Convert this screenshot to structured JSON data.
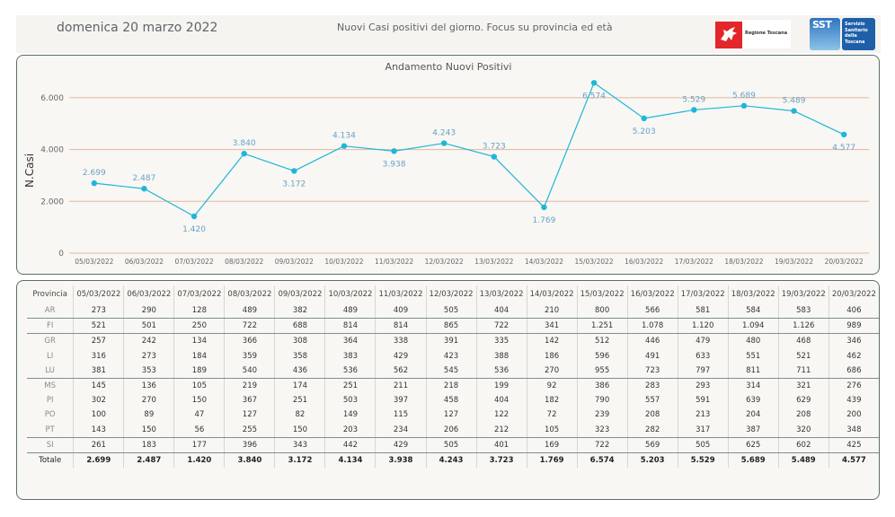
{
  "header": {
    "date": "domenica 20 marzo 2022",
    "title": "Nuovi Casi positivi del giorno. Focus su provincia ed età",
    "logo_regione_label": "Regione Toscana",
    "logo_sst_acronym": "SST",
    "logo_sst_text": [
      "Servizio",
      "Sanitario",
      "della",
      "Toscana"
    ]
  },
  "chart_data": {
    "type": "line",
    "title": "Andamento Nuovi Positivi",
    "xlabel": "",
    "ylabel": "N.Casi",
    "ylim": [
      0,
      7000
    ],
    "yticks": [
      0,
      2000,
      4000,
      6000
    ],
    "ytick_labels": [
      "0",
      "2.000",
      "4.000",
      "6.000"
    ],
    "grid": true,
    "line_color": "#1fb6d8",
    "grid_color": "#e3b7a0",
    "label_color": "#6aa0c8",
    "categories": [
      "05/03/2022",
      "06/03/2022",
      "07/03/2022",
      "08/03/2022",
      "09/03/2022",
      "10/03/2022",
      "11/03/2022",
      "12/03/2022",
      "13/03/2022",
      "14/03/2022",
      "15/03/2022",
      "16/03/2022",
      "17/03/2022",
      "18/03/2022",
      "19/03/2022",
      "20/03/2022"
    ],
    "series": [
      {
        "name": "Nuovi Positivi",
        "values": [
          2699,
          2487,
          1420,
          3840,
          3172,
          4134,
          3938,
          4243,
          3723,
          1769,
          6574,
          5203,
          5529,
          5689,
          5489,
          4577
        ],
        "labels": [
          "2.699",
          "2.487",
          "1.420",
          "3.840",
          "3.172",
          "4.134",
          "3.938",
          "4.243",
          "3.723",
          "1.769",
          "6.574",
          "5.203",
          "5.529",
          "5.689",
          "5.489",
          "4.577"
        ],
        "label_pos": [
          "above",
          "above",
          "below",
          "above",
          "below",
          "above",
          "below",
          "above",
          "above",
          "below",
          "below",
          "below",
          "above",
          "above",
          "above",
          "below"
        ]
      }
    ]
  },
  "table": {
    "header_first": "Provincia",
    "dates": [
      "05/03/2022",
      "06/03/2022",
      "07/03/2022",
      "08/03/2022",
      "09/03/2022",
      "10/03/2022",
      "11/03/2022",
      "12/03/2022",
      "13/03/2022",
      "14/03/2022",
      "15/03/2022",
      "16/03/2022",
      "17/03/2022",
      "18/03/2022",
      "19/03/2022",
      "20/03/2022"
    ],
    "rows": [
      {
        "prov": "AR",
        "values": [
          "273",
          "290",
          "128",
          "489",
          "382",
          "489",
          "409",
          "505",
          "404",
          "210",
          "800",
          "566",
          "581",
          "584",
          "583",
          "406"
        ]
      },
      {
        "prov": "FI",
        "values": [
          "521",
          "501",
          "250",
          "722",
          "688",
          "814",
          "814",
          "865",
          "722",
          "341",
          "1.251",
          "1.078",
          "1.120",
          "1.094",
          "1.126",
          "989"
        ]
      },
      {
        "prov": "GR",
        "values": [
          "257",
          "242",
          "134",
          "366",
          "308",
          "364",
          "338",
          "391",
          "335",
          "142",
          "512",
          "446",
          "479",
          "480",
          "468",
          "346"
        ]
      },
      {
        "prov": "LI",
        "values": [
          "316",
          "273",
          "184",
          "359",
          "358",
          "383",
          "429",
          "423",
          "388",
          "186",
          "596",
          "491",
          "633",
          "551",
          "521",
          "462"
        ]
      },
      {
        "prov": "LU",
        "values": [
          "381",
          "353",
          "189",
          "540",
          "436",
          "536",
          "562",
          "545",
          "536",
          "270",
          "955",
          "723",
          "797",
          "811",
          "711",
          "686"
        ]
      },
      {
        "prov": "MS",
        "values": [
          "145",
          "136",
          "105",
          "219",
          "174",
          "251",
          "211",
          "218",
          "199",
          "92",
          "386",
          "283",
          "293",
          "314",
          "321",
          "276"
        ]
      },
      {
        "prov": "PI",
        "values": [
          "302",
          "270",
          "150",
          "367",
          "251",
          "503",
          "397",
          "458",
          "404",
          "182",
          "790",
          "557",
          "591",
          "639",
          "629",
          "439"
        ]
      },
      {
        "prov": "PO",
        "values": [
          "100",
          "89",
          "47",
          "127",
          "82",
          "149",
          "115",
          "127",
          "122",
          "72",
          "239",
          "208",
          "213",
          "204",
          "208",
          "200"
        ]
      },
      {
        "prov": "PT",
        "values": [
          "143",
          "150",
          "56",
          "255",
          "150",
          "203",
          "234",
          "206",
          "212",
          "105",
          "323",
          "282",
          "317",
          "387",
          "320",
          "348"
        ]
      },
      {
        "prov": "SI",
        "values": [
          "261",
          "183",
          "177",
          "396",
          "343",
          "442",
          "429",
          "505",
          "401",
          "169",
          "722",
          "569",
          "505",
          "625",
          "602",
          "425"
        ]
      }
    ],
    "total": {
      "prov": "Totale",
      "values": [
        "2.699",
        "2.487",
        "1.420",
        "3.840",
        "3.172",
        "4.134",
        "3.938",
        "4.243",
        "3.723",
        "1.769",
        "6.574",
        "5.203",
        "5.529",
        "5.689",
        "5.489",
        "4.577"
      ]
    }
  }
}
